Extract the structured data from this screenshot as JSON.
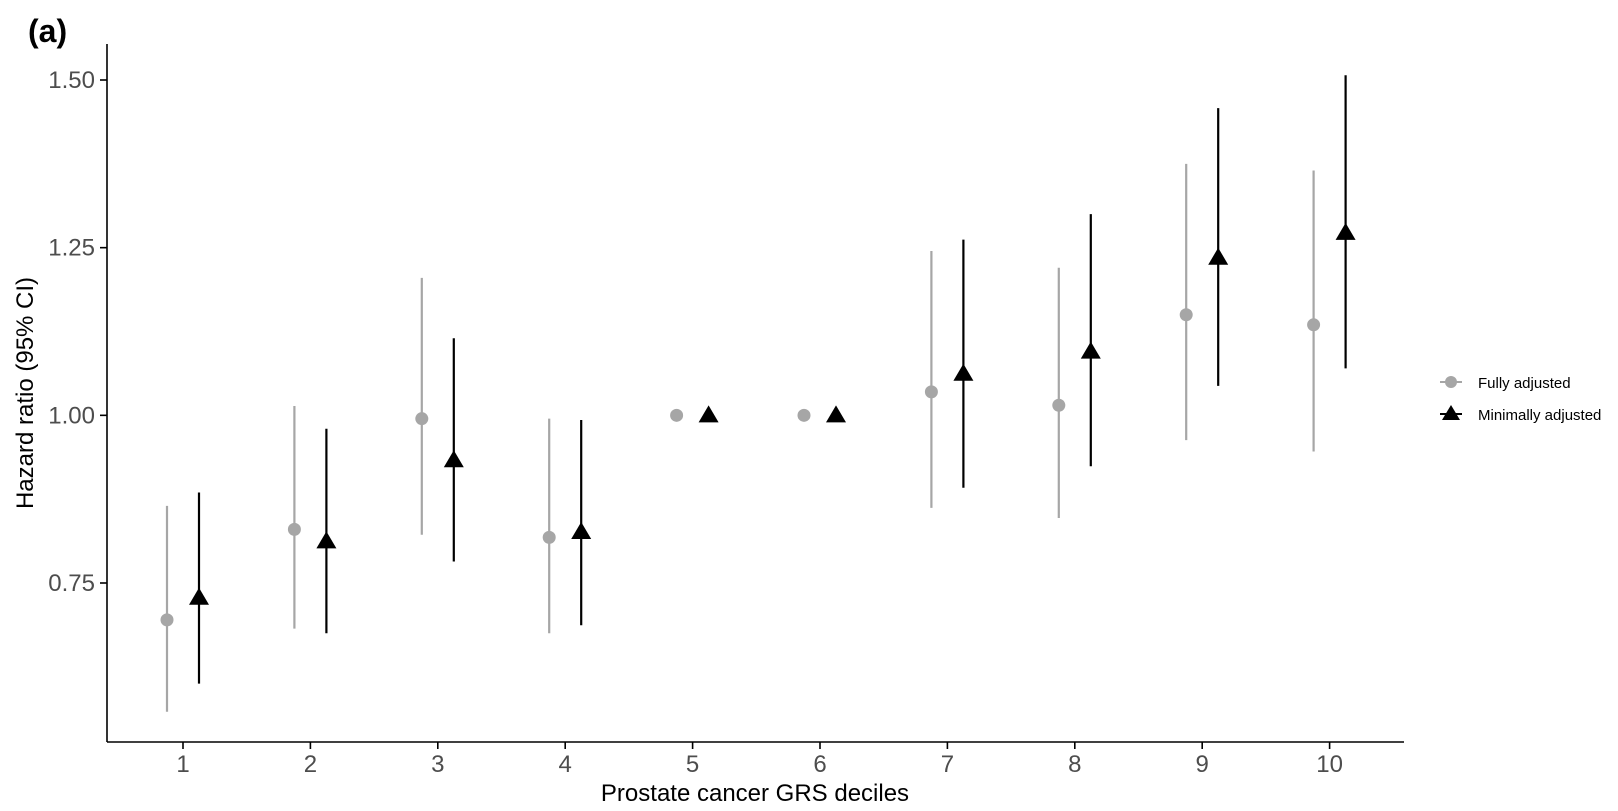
{
  "panel_label": "(a)",
  "chart_data": {
    "type": "scatter",
    "title": "",
    "xlabel": "Prostate cancer GRS deciles",
    "ylabel": "Hazard ratio (95% CI)",
    "categories": [
      "1",
      "2",
      "3",
      "4",
      "5",
      "6",
      "7",
      "8",
      "9",
      "10"
    ],
    "y_ticks": [
      0.75,
      1.0,
      1.25,
      1.5
    ],
    "y_tick_labels": [
      "0.75",
      "1.00",
      "1.25",
      "1.50"
    ],
    "ylim": [
      0.5,
      1.55
    ],
    "grid": false,
    "legend_position": "right",
    "series": [
      {
        "name": "Fully adjusted",
        "color": "#a6a6a6",
        "marker": "circle",
        "values": [
          0.695,
          0.83,
          0.995,
          0.818,
          1.0,
          1.0,
          1.035,
          1.015,
          1.15,
          1.135
        ],
        "lower": [
          0.558,
          0.682,
          0.822,
          0.675,
          null,
          null,
          0.862,
          0.847,
          0.963,
          0.946
        ],
        "upper": [
          0.865,
          1.014,
          1.205,
          0.995,
          null,
          null,
          1.245,
          1.22,
          1.375,
          1.365
        ]
      },
      {
        "name": "Minimally adjusted",
        "color": "#000000",
        "marker": "triangle",
        "values": [
          0.728,
          0.812,
          0.933,
          0.826,
          1.0,
          1.0,
          1.062,
          1.095,
          1.235,
          1.272
        ],
        "lower": [
          0.6,
          0.675,
          0.782,
          0.687,
          null,
          null,
          0.892,
          0.924,
          1.044,
          1.07
        ],
        "upper": [
          0.885,
          0.98,
          1.115,
          0.993,
          null,
          null,
          1.262,
          1.3,
          1.458,
          1.507
        ]
      }
    ]
  }
}
